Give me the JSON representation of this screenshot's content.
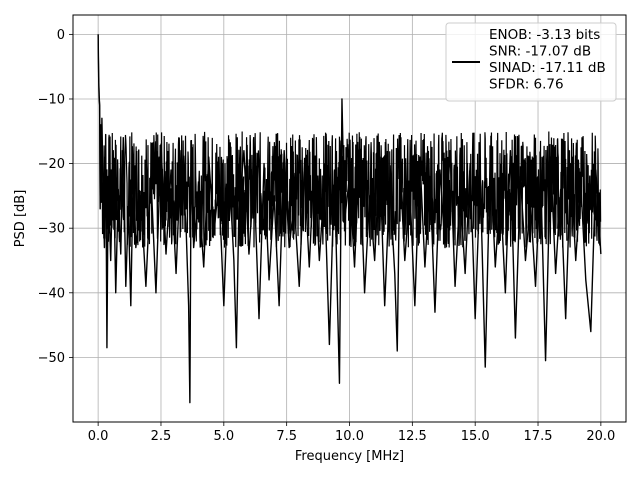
{
  "chart_data": {
    "type": "line",
    "title": "",
    "xlabel": "Frequency [MHz]",
    "ylabel": "PSD [dB]",
    "xlim": [
      -1.0,
      21.0
    ],
    "ylim": [
      -60.0,
      3.0
    ],
    "xticks": [
      0.0,
      2.5,
      5.0,
      7.5,
      10.0,
      12.5,
      15.0,
      17.5,
      20.0
    ],
    "xtick_labels": [
      "0.0",
      "2.5",
      "5.0",
      "7.5",
      "10.0",
      "12.5",
      "15.0",
      "17.5",
      "20.0"
    ],
    "yticks": [
      0,
      -10,
      -20,
      -30,
      -40,
      -50
    ],
    "ytick_labels": [
      "0",
      "−10",
      "−20",
      "−30",
      "−40",
      "−50"
    ],
    "grid": true,
    "legend_placement": "top-right",
    "series": [
      {
        "name": "ENOB: -3.13 bits\nSNR: -17.07 dB\nSINAD: -17.11 dB\nSFDR: 6.76",
        "legend_lines": [
          "ENOB: -3.13 bits",
          "SNR: -17.07 dB",
          "SINAD: -17.11 dB",
          "SFDR: 6.76"
        ],
        "color": "#000000",
        "x": [
          0.0,
          0.02,
          0.04,
          0.06,
          0.08,
          0.1,
          0.12,
          0.15,
          0.2,
          0.25,
          0.3,
          0.35,
          0.4,
          0.5,
          0.6,
          0.7,
          0.8,
          0.9,
          1.0,
          1.1,
          1.2,
          1.3,
          1.4,
          1.5,
          1.7,
          1.9,
          2.1,
          2.3,
          2.5,
          2.7,
          2.9,
          3.1,
          3.3,
          3.5,
          3.6,
          3.65,
          3.7,
          3.8,
          4.0,
          4.2,
          4.4,
          4.6,
          4.8,
          5.0,
          5.2,
          5.4,
          5.5,
          5.6,
          5.8,
          6.0,
          6.2,
          6.4,
          6.6,
          6.8,
          7.0,
          7.2,
          7.4,
          7.6,
          7.8,
          8.0,
          8.2,
          8.4,
          8.6,
          8.8,
          9.0,
          9.2,
          9.4,
          9.6,
          9.7,
          9.8,
          10.0,
          10.2,
          10.4,
          10.6,
          10.8,
          11.0,
          11.2,
          11.4,
          11.6,
          11.8,
          11.9,
          12.0,
          12.2,
          12.4,
          12.6,
          12.8,
          13.0,
          13.2,
          13.4,
          13.6,
          13.8,
          14.0,
          14.2,
          14.4,
          14.6,
          14.8,
          15.0,
          15.2,
          15.4,
          15.6,
          15.8,
          16.0,
          16.2,
          16.4,
          16.6,
          16.8,
          17.0,
          17.2,
          17.4,
          17.6,
          17.8,
          18.0,
          18.2,
          18.4,
          18.6,
          18.8,
          19.0,
          19.2,
          19.4,
          19.6,
          19.8,
          20.0
        ],
        "y": [
          0.0,
          -6.5,
          -9.5,
          -11.0,
          -27.0,
          -14.0,
          -26.0,
          -13.0,
          -25.0,
          -33.0,
          -15.5,
          -48.5,
          -22.0,
          -35.0,
          -18.0,
          -40.0,
          -24.0,
          -34.0,
          -16.0,
          -39.0,
          -27.0,
          -42.0,
          -20.0,
          -33.0,
          -25.0,
          -39.0,
          -22.0,
          -40.0,
          -17.0,
          -34.0,
          -21.0,
          -37.0,
          -18.0,
          -30.0,
          -42.0,
          -57.0,
          -20.0,
          -33.0,
          -24.0,
          -36.0,
          -19.0,
          -31.0,
          -23.0,
          -42.0,
          -20.0,
          -35.0,
          -48.5,
          -27.0,
          -18.0,
          -34.0,
          -22.0,
          -44.0,
          -20.0,
          -38.0,
          -25.0,
          -42.0,
          -18.0,
          -33.0,
          -26.0,
          -39.0,
          -21.0,
          -36.0,
          -19.0,
          -35.0,
          -23.0,
          -48.0,
          -21.0,
          -54.0,
          -10.0,
          -29.0,
          -22.0,
          -36.0,
          -18.0,
          -40.0,
          -25.0,
          -35.0,
          -19.0,
          -42.0,
          -23.0,
          -37.0,
          -49.0,
          -20.0,
          -35.0,
          -24.0,
          -42.0,
          -19.0,
          -36.0,
          -22.0,
          -43.0,
          -21.0,
          -33.0,
          -18.0,
          -39.0,
          -24.0,
          -37.0,
          -20.0,
          -44.0,
          -22.0,
          -51.5,
          -19.0,
          -36.0,
          -24.0,
          -40.0,
          -18.0,
          -47.0,
          -22.0,
          -35.0,
          -26.0,
          -39.0,
          -21.0,
          -50.5,
          -19.0,
          -37.0,
          -24.0,
          -44.0,
          -20.0,
          -35.0,
          -23.0,
          -38.0,
          -46.0,
          -21.0,
          -34.0
        ]
      }
    ]
  }
}
